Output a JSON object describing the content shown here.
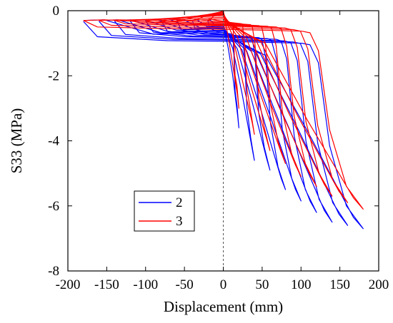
{
  "chart_data": {
    "type": "line",
    "title": "",
    "xlabel": "Displacement (mm)",
    "ylabel": "S33 (MPa)",
    "xlim": [
      -200,
      200
    ],
    "ylim": [
      -8,
      0
    ],
    "xticks": [
      -200,
      -150,
      -100,
      -50,
      0,
      50,
      100,
      150,
      200
    ],
    "yticks": [
      0,
      -2,
      -4,
      -6,
      -8
    ],
    "xtick_labels": [
      "-200",
      "-150",
      "-100",
      "-50",
      "0",
      "50",
      "100",
      "150",
      "200"
    ],
    "ytick_labels": [
      "0",
      "-2",
      "-4",
      "-6",
      "-8"
    ],
    "grid": false,
    "legend_position": "lower-left",
    "reference_line": {
      "x": 0,
      "style": "dashed",
      "color": "#555555"
    },
    "series": [
      {
        "name": "2",
        "color": "#0000ff",
        "cycles": [
          {
            "amplitude": 20,
            "peak_stress": -3.6,
            "unload_stress": -0.65
          },
          {
            "amplitude": 40,
            "peak_stress": -4.6,
            "unload_stress": -0.7
          },
          {
            "amplitude": 60,
            "peak_stress": -4.9,
            "unload_stress": -0.72
          },
          {
            "amplitude": 80,
            "peak_stress": -5.5,
            "unload_stress": -0.75
          },
          {
            "amplitude": 100,
            "peak_stress": -5.85,
            "unload_stress": -0.78
          },
          {
            "amplitude": 120,
            "peak_stress": -6.2,
            "unload_stress": -0.8
          },
          {
            "amplitude": 140,
            "peak_stress": -6.5,
            "unload_stress": -0.85
          },
          {
            "amplitude": 160,
            "peak_stress": -6.6,
            "unload_stress": -0.88
          },
          {
            "amplitude": 180,
            "peak_stress": -6.7,
            "unload_stress": -0.92
          }
        ]
      },
      {
        "name": "3",
        "color": "#ff0000",
        "cycles": [
          {
            "amplitude": 20,
            "peak_stress": -3.0,
            "unload_stress": -0.3
          },
          {
            "amplitude": 40,
            "peak_stress": -3.8,
            "unload_stress": -0.32
          },
          {
            "amplitude": 60,
            "peak_stress": -4.3,
            "unload_stress": -0.35
          },
          {
            "amplitude": 80,
            "peak_stress": -4.7,
            "unload_stress": -0.38
          },
          {
            "amplitude": 100,
            "peak_stress": -5.1,
            "unload_stress": -0.4
          },
          {
            "amplitude": 120,
            "peak_stress": -5.4,
            "unload_stress": -0.42
          },
          {
            "amplitude": 140,
            "peak_stress": -5.7,
            "unload_stress": -0.45
          },
          {
            "amplitude": 160,
            "peak_stress": -5.9,
            "unload_stress": -0.5
          },
          {
            "amplitude": 180,
            "peak_stress": -6.1,
            "unload_stress": -0.55
          }
        ]
      }
    ]
  }
}
